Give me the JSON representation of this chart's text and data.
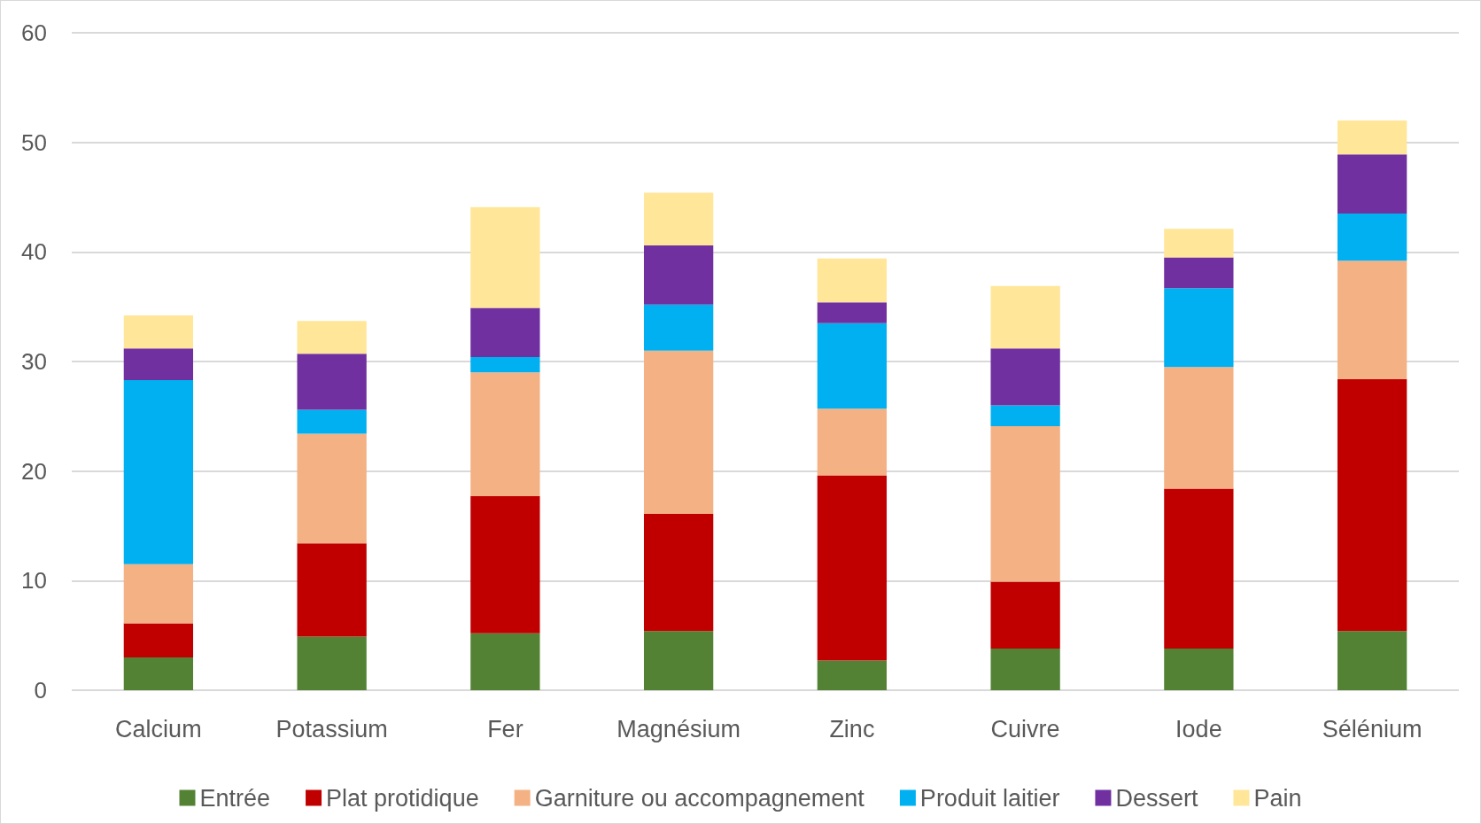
{
  "chart_data": {
    "type": "bar",
    "stacked": true,
    "categories": [
      "Calcium",
      "Potassium",
      "Fer",
      "Magnésium",
      "Zinc",
      "Cuivre",
      "Iode",
      "Sélénium"
    ],
    "series": [
      {
        "name": "Entrée",
        "color": "#548235",
        "values": [
          3.0,
          4.9,
          5.2,
          5.4,
          2.7,
          3.8,
          3.8,
          5.4
        ]
      },
      {
        "name": "Plat protidique",
        "color": "#c00000",
        "values": [
          3.1,
          8.5,
          12.5,
          10.7,
          16.9,
          6.1,
          14.6,
          23.0
        ]
      },
      {
        "name": "Garniture ou accompagnement",
        "color": "#f4b183",
        "values": [
          5.4,
          10.0,
          11.3,
          14.9,
          6.1,
          14.2,
          11.1,
          10.8
        ]
      },
      {
        "name": "Produit laitier",
        "color": "#00b0f0",
        "values": [
          16.8,
          2.2,
          1.4,
          4.2,
          7.8,
          1.9,
          7.2,
          4.3
        ]
      },
      {
        "name": "Dessert",
        "color": "#7030a0",
        "values": [
          2.9,
          5.1,
          4.5,
          5.4,
          1.9,
          5.2,
          2.8,
          5.4
        ]
      },
      {
        "name": "Pain",
        "color": "#ffe699",
        "values": [
          3.0,
          3.0,
          9.2,
          4.8,
          4.0,
          5.7,
          2.6,
          3.1
        ]
      }
    ],
    "ylim": [
      0,
      60
    ],
    "yticks": [
      0,
      10,
      20,
      30,
      40,
      50,
      60
    ],
    "grid": "y",
    "legend": "bottom"
  }
}
